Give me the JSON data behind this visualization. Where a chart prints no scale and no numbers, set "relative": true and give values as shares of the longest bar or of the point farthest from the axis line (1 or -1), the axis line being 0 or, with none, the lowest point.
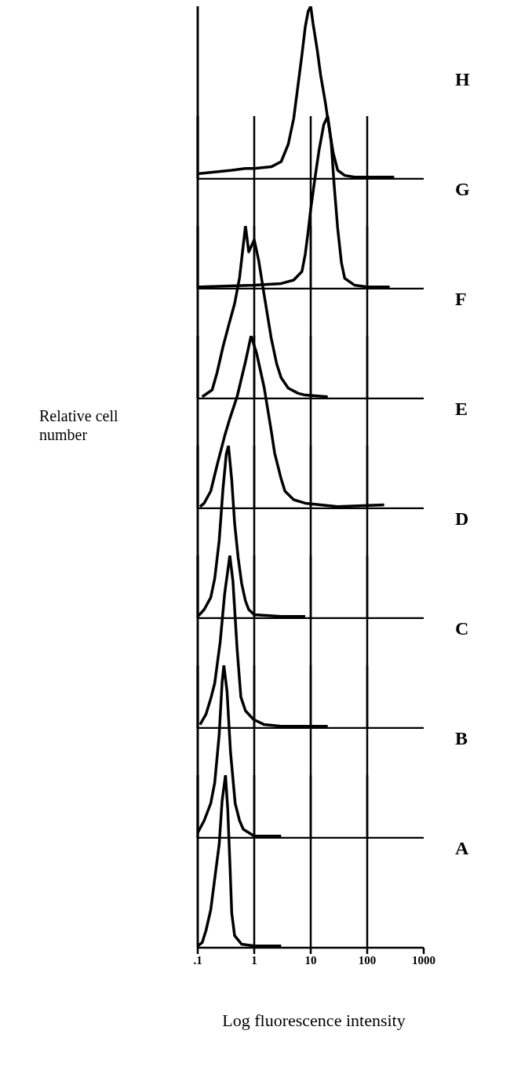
{
  "chart_data": [
    {
      "type": "line",
      "relative": true,
      "log": "x",
      "grid": "x",
      "tick_labels": false,
      "xlim": [
        0.1,
        1000
      ],
      "xticks": [
        0.1
      ],
      "x": [
        0.1,
        0.2,
        0.4,
        0.7,
        1,
        2,
        3,
        4,
        5,
        6,
        7,
        8,
        9,
        10,
        11,
        13,
        15,
        18,
        20,
        25,
        30,
        40,
        60,
        300
      ],
      "series": [
        {
          "name": "H",
          "color": "#000000",
          "values": [
            0.03,
            0.04,
            0.05,
            0.06,
            0.06,
            0.07,
            0.1,
            0.2,
            0.35,
            0.55,
            0.72,
            0.88,
            0.97,
            1,
            0.9,
            0.75,
            0.6,
            0.45,
            0.35,
            0.15,
            0.05,
            0.02,
            0.01,
            0.01
          ]
        }
      ]
    },
    {
      "type": "line",
      "relative": true,
      "log": "x",
      "grid": "x",
      "tick_labels": false,
      "xlim": [
        0.1,
        1000
      ],
      "xticks": [
        0.1,
        1,
        10,
        100
      ],
      "x": [
        0.1,
        1,
        3,
        5,
        7,
        8,
        9,
        10,
        12,
        14,
        17,
        20,
        23,
        26,
        30,
        35,
        40,
        60,
        100,
        250
      ],
      "series": [
        {
          "name": "G",
          "color": "#000000",
          "values": [
            0.01,
            0.02,
            0.03,
            0.05,
            0.1,
            0.2,
            0.33,
            0.46,
            0.65,
            0.8,
            0.95,
            1,
            0.85,
            0.6,
            0.35,
            0.15,
            0.06,
            0.02,
            0.01,
            0.01
          ]
        }
      ]
    },
    {
      "type": "line",
      "relative": true,
      "log": "x",
      "grid": "x",
      "tick_labels": false,
      "xlim": [
        0.1,
        1000
      ],
      "xticks": [
        0.1,
        1,
        10,
        100
      ],
      "x": [
        0.12,
        0.18,
        0.22,
        0.28,
        0.35,
        0.45,
        0.55,
        0.7,
        0.8,
        1,
        1.2,
        1.5,
        2,
        2.5,
        3,
        4,
        6,
        8,
        20
      ],
      "series": [
        {
          "name": "F",
          "color": "#000000",
          "values": [
            0.01,
            0.05,
            0.15,
            0.3,
            0.42,
            0.55,
            0.7,
            1,
            0.85,
            0.92,
            0.8,
            0.6,
            0.35,
            0.2,
            0.12,
            0.06,
            0.03,
            0.02,
            0.01
          ]
        }
      ]
    },
    {
      "type": "line",
      "ylabel": "Relative cell number",
      "relative": true,
      "log": "x",
      "grid": "x",
      "tick_labels": false,
      "xlim": [
        0.1,
        1000
      ],
      "xticks": [
        0.1,
        1,
        10,
        100
      ],
      "x": [
        0.11,
        0.13,
        0.17,
        0.22,
        0.3,
        0.37,
        0.5,
        0.7,
        0.88,
        1.1,
        1.5,
        2,
        2.3,
        3,
        3.5,
        5,
        8,
        30,
        200
      ],
      "series": [
        {
          "name": "E",
          "color": "#000000",
          "values": [
            0.01,
            0.03,
            0.1,
            0.25,
            0.42,
            0.52,
            0.65,
            0.85,
            1,
            0.9,
            0.7,
            0.45,
            0.32,
            0.17,
            0.1,
            0.05,
            0.03,
            0.01,
            0.02
          ]
        }
      ]
    },
    {
      "type": "line",
      "relative": true,
      "log": "x",
      "grid": "x",
      "tick_labels": false,
      "xlim": [
        0.1,
        1000
      ],
      "xticks": [
        0.1,
        1,
        10,
        100
      ],
      "x": [
        0.1,
        0.13,
        0.17,
        0.2,
        0.24,
        0.28,
        0.32,
        0.35,
        0.4,
        0.45,
        0.52,
        0.6,
        0.7,
        0.8,
        1,
        3,
        8
      ],
      "series": [
        {
          "name": "D",
          "color": "#000000",
          "values": [
            0.01,
            0.05,
            0.12,
            0.23,
            0.45,
            0.75,
            0.95,
            1,
            0.8,
            0.55,
            0.35,
            0.2,
            0.1,
            0.05,
            0.02,
            0.01,
            0.01
          ]
        }
      ]
    },
    {
      "type": "line",
      "relative": true,
      "log": "x",
      "grid": "x",
      "tick_labels": false,
      "xlim": [
        0.1,
        1000
      ],
      "xticks": [
        0.1,
        1,
        10,
        100
      ],
      "x": [
        0.11,
        0.14,
        0.17,
        0.2,
        0.25,
        0.3,
        0.37,
        0.42,
        0.5,
        0.58,
        0.7,
        0.97,
        1.5,
        3,
        20
      ],
      "series": [
        {
          "name": "C",
          "color": "#000000",
          "values": [
            0.02,
            0.08,
            0.17,
            0.26,
            0.5,
            0.78,
            1,
            0.85,
            0.45,
            0.18,
            0.1,
            0.05,
            0.02,
            0.01,
            0.01
          ]
        }
      ]
    },
    {
      "type": "line",
      "relative": true,
      "log": "x",
      "grid": "x",
      "tick_labels": false,
      "xlim": [
        0.1,
        1000
      ],
      "xticks": [
        0.1,
        1,
        10,
        100
      ],
      "x": [
        0.1,
        0.13,
        0.17,
        0.2,
        0.24,
        0.27,
        0.29,
        0.33,
        0.38,
        0.46,
        0.55,
        0.64,
        1,
        3
      ],
      "series": [
        {
          "name": "B",
          "color": "#000000",
          "values": [
            0.03,
            0.1,
            0.2,
            0.32,
            0.6,
            0.9,
            1,
            0.85,
            0.5,
            0.2,
            0.1,
            0.05,
            0.01,
            0.01
          ]
        }
      ]
    },
    {
      "type": "line",
      "xlabel": "Log fluorescence intensity",
      "relative": true,
      "log": "x",
      "grid": "x",
      "tick_labels": "x",
      "xlim": [
        0.1,
        1000
      ],
      "xticks": [
        {
          "value": 0.1,
          "label": ".1"
        },
        1,
        10,
        100,
        1000
      ],
      "x": [
        0.1,
        0.12,
        0.14,
        0.17,
        0.2,
        0.24,
        0.27,
        0.31,
        0.34,
        0.37,
        0.4,
        0.45,
        0.6,
        1,
        3
      ],
      "series": [
        {
          "name": "A",
          "color": "#000000",
          "values": [
            0.01,
            0.03,
            0.1,
            0.22,
            0.4,
            0.6,
            0.85,
            1,
            0.8,
            0.5,
            0.2,
            0.07,
            0.02,
            0.01,
            0.01
          ]
        }
      ]
    }
  ]
}
